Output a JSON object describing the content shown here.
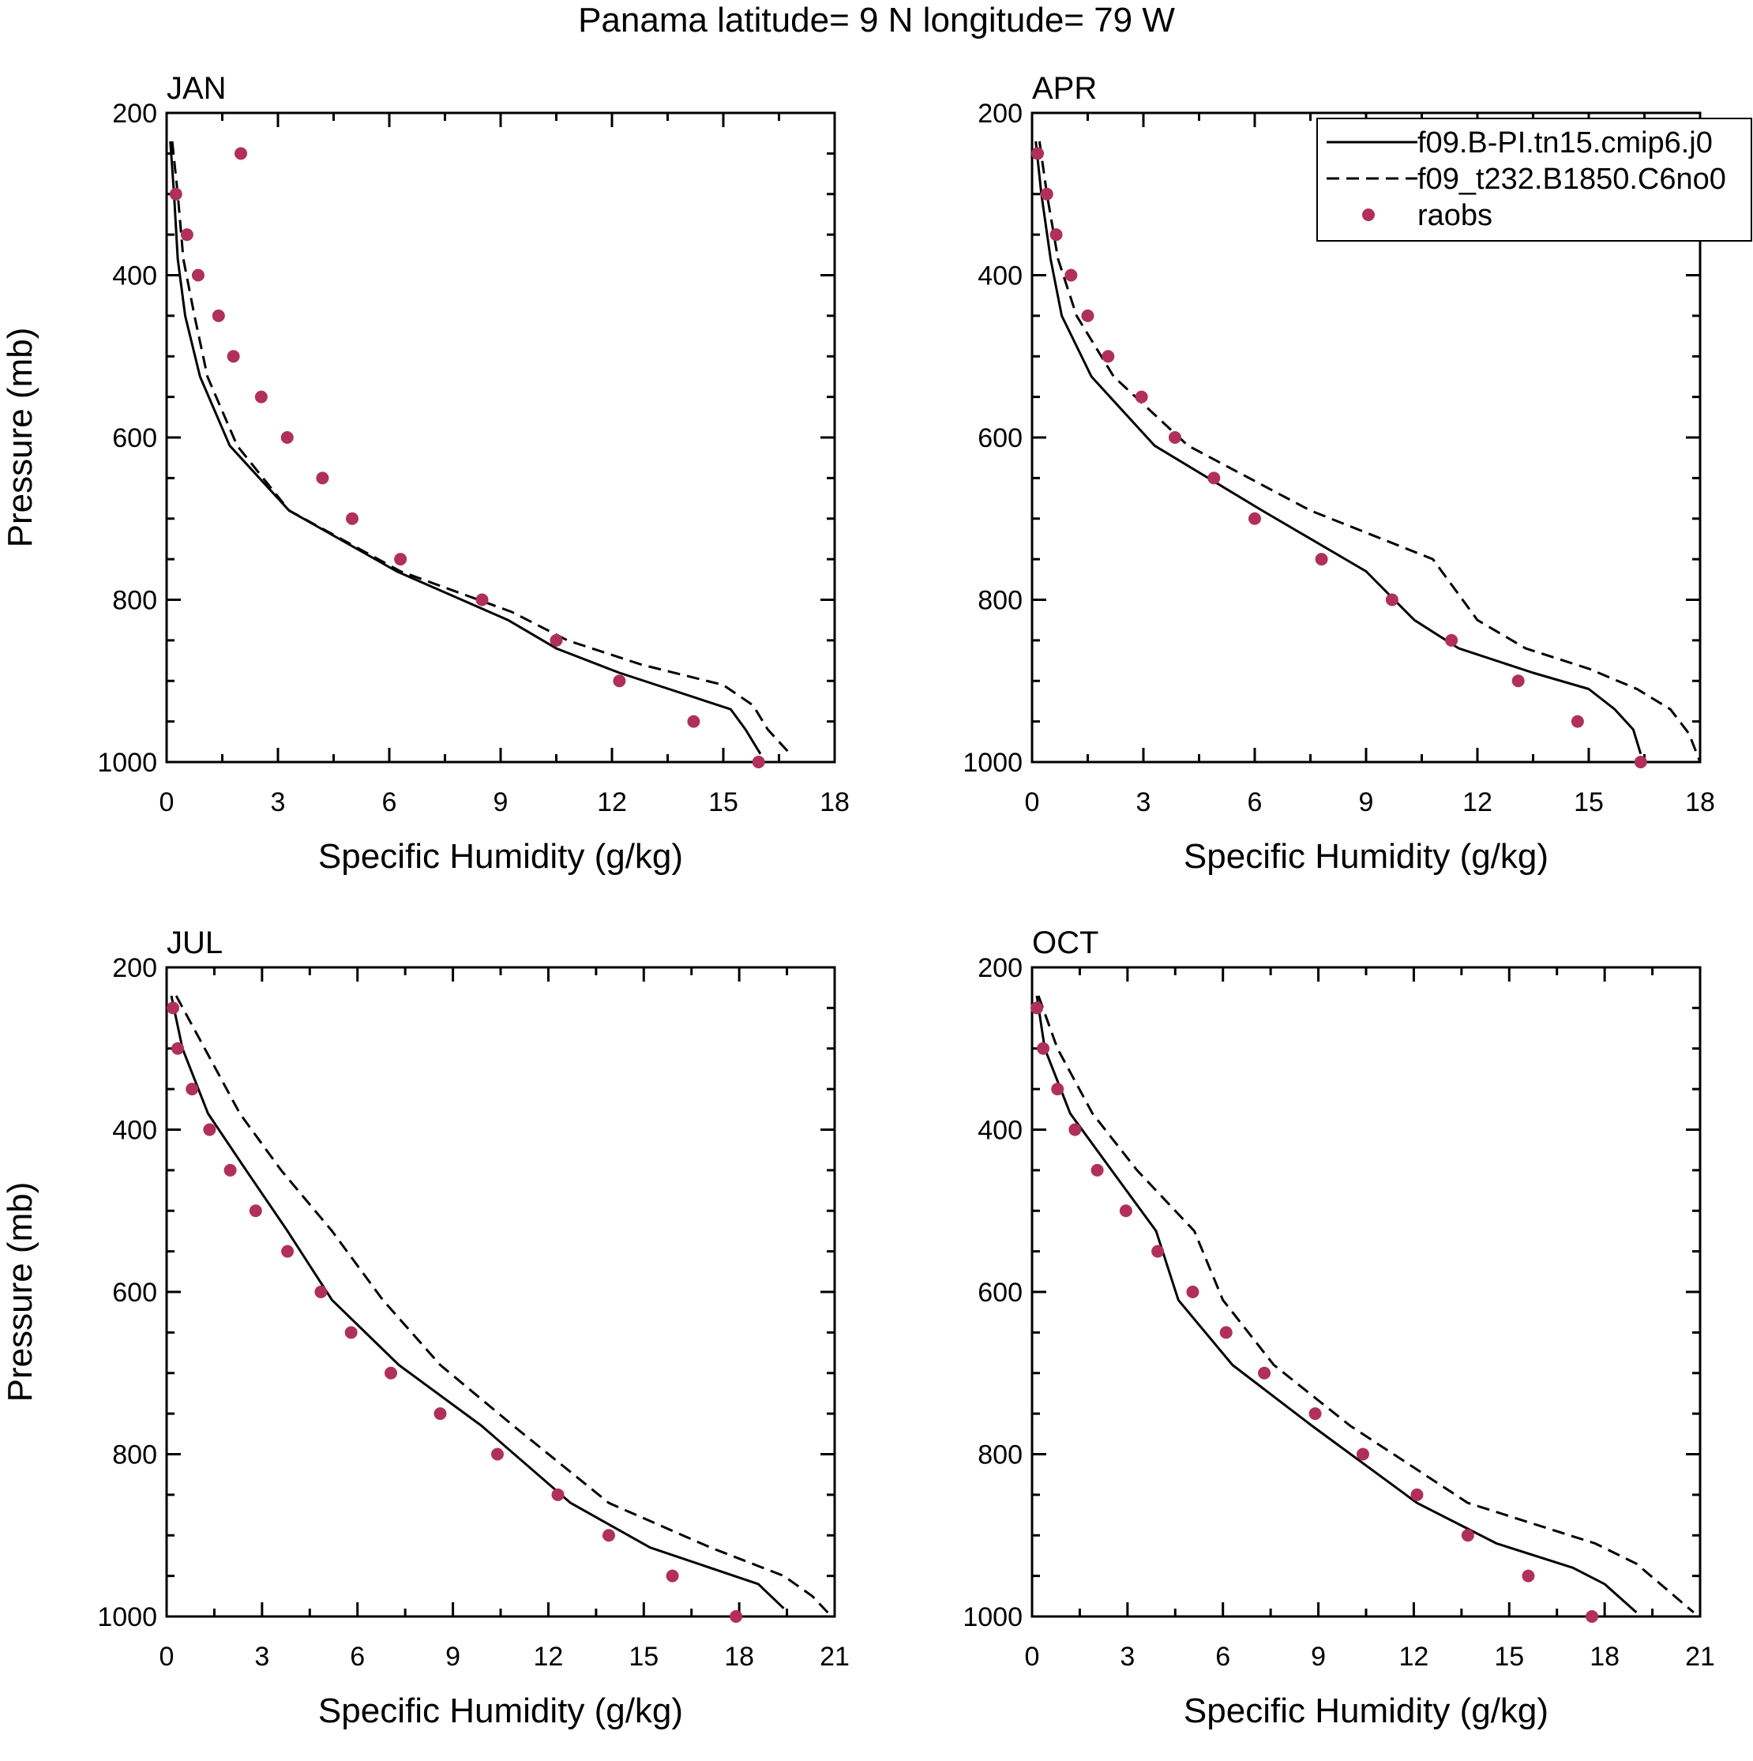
{
  "title": "Panama  latitude= 9 N longitude= 79 W",
  "colors": {
    "axis": "#000000",
    "model": "#000000",
    "obs": "#b0305a",
    "background": "#ffffff"
  },
  "legend": {
    "placement": "top-right of APR panel",
    "entries": [
      {
        "label": "f09.B-PI.tn15.cmip6.j0",
        "style": "solid-line"
      },
      {
        "label": "f09_t232.B1850.C6no0",
        "style": "dashed-line"
      },
      {
        "label": "raobs",
        "style": "dot-marker"
      }
    ]
  },
  "chart_data": [
    {
      "type": "line",
      "panel": "JAN",
      "title": "JAN",
      "xlabel": "Specific Humidity (g/kg)",
      "ylabel": "Pressure (mb)",
      "xlim": [
        0,
        18
      ],
      "ylim": [
        200,
        1000
      ],
      "y_inverted": true,
      "xticks": [
        0,
        3,
        6,
        9,
        12,
        15,
        18
      ],
      "yticks": [
        200,
        400,
        600,
        800,
        1000
      ],
      "series": [
        {
          "name": "f09.B-PI.tn15.cmip6.j0",
          "style": "solid",
          "points": [
            [
              0.1,
              235
            ],
            [
              0.2,
              300
            ],
            [
              0.3,
              380
            ],
            [
              0.5,
              450
            ],
            [
              0.9,
              525
            ],
            [
              1.7,
              610
            ],
            [
              3.3,
              690
            ],
            [
              6.2,
              765
            ],
            [
              9.2,
              825
            ],
            [
              10.5,
              860
            ],
            [
              12.2,
              890
            ],
            [
              15.2,
              935
            ],
            [
              15.6,
              960
            ],
            [
              16.0,
              990
            ]
          ]
        },
        {
          "name": "f09_t232.B1850.C6no0",
          "style": "dashed",
          "points": [
            [
              0.15,
              235
            ],
            [
              0.3,
              300
            ],
            [
              0.45,
              380
            ],
            [
              0.75,
              450
            ],
            [
              1.1,
              525
            ],
            [
              1.9,
              610
            ],
            [
              3.3,
              690
            ],
            [
              6.3,
              765
            ],
            [
              9.3,
              815
            ],
            [
              10.8,
              850
            ],
            [
              12.8,
              880
            ],
            [
              15.0,
              905
            ],
            [
              15.8,
              930
            ],
            [
              16.2,
              960
            ],
            [
              16.8,
              990
            ]
          ]
        },
        {
          "name": "raobs",
          "style": "markers",
          "points": [
            [
              2.0,
              250
            ],
            [
              0.25,
              300
            ],
            [
              0.55,
              350
            ],
            [
              0.85,
              400
            ],
            [
              1.4,
              450
            ],
            [
              1.8,
              500
            ],
            [
              2.55,
              550
            ],
            [
              3.25,
              600
            ],
            [
              4.2,
              650
            ],
            [
              5.0,
              700
            ],
            [
              6.3,
              750
            ],
            [
              8.5,
              800
            ],
            [
              10.5,
              850
            ],
            [
              12.2,
              900
            ],
            [
              14.2,
              950
            ],
            [
              15.95,
              1000
            ]
          ]
        }
      ]
    },
    {
      "type": "line",
      "panel": "APR",
      "title": "APR",
      "xlabel": "Specific Humidity (g/kg)",
      "ylabel": "",
      "xlim": [
        0,
        18
      ],
      "ylim": [
        200,
        1000
      ],
      "y_inverted": true,
      "xticks": [
        0,
        3,
        6,
        9,
        12,
        15,
        18
      ],
      "yticks": [
        200,
        400,
        600,
        800,
        1000
      ],
      "series": [
        {
          "name": "f09.B-PI.tn15.cmip6.j0",
          "style": "solid",
          "points": [
            [
              0.1,
              235
            ],
            [
              0.25,
              300
            ],
            [
              0.5,
              380
            ],
            [
              0.8,
              450
            ],
            [
              1.6,
              525
            ],
            [
              3.3,
              610
            ],
            [
              6.2,
              690
            ],
            [
              9.0,
              765
            ],
            [
              10.3,
              825
            ],
            [
              11.5,
              860
            ],
            [
              13.5,
              890
            ],
            [
              15.0,
              910
            ],
            [
              15.7,
              935
            ],
            [
              16.2,
              960
            ],
            [
              16.4,
              990
            ]
          ]
        },
        {
          "name": "f09_t232.B1850.C6no0",
          "style": "dashed",
          "points": [
            [
              0.2,
              235
            ],
            [
              0.4,
              300
            ],
            [
              0.7,
              380
            ],
            [
              1.2,
              450
            ],
            [
              2.2,
              525
            ],
            [
              4.2,
              610
            ],
            [
              7.5,
              690
            ],
            [
              10.8,
              750
            ],
            [
              12.0,
              825
            ],
            [
              13.3,
              860
            ],
            [
              15.0,
              885
            ],
            [
              16.3,
              910
            ],
            [
              17.2,
              935
            ],
            [
              17.7,
              965
            ],
            [
              18.0,
              1000
            ]
          ]
        },
        {
          "name": "raobs",
          "style": "markers",
          "points": [
            [
              0.15,
              250
            ],
            [
              0.4,
              300
            ],
            [
              0.65,
              350
            ],
            [
              1.05,
              400
            ],
            [
              1.5,
              450
            ],
            [
              2.05,
              500
            ],
            [
              2.95,
              550
            ],
            [
              3.85,
              600
            ],
            [
              4.9,
              650
            ],
            [
              6.0,
              700
            ],
            [
              7.8,
              750
            ],
            [
              9.7,
              800
            ],
            [
              11.3,
              850
            ],
            [
              13.1,
              900
            ],
            [
              14.7,
              950
            ],
            [
              16.4,
              1000
            ]
          ]
        }
      ]
    },
    {
      "type": "line",
      "panel": "JUL",
      "title": "JUL",
      "xlabel": "Specific Humidity (g/kg)",
      "ylabel": "Pressure (mb)",
      "xlim": [
        0,
        21
      ],
      "ylim": [
        200,
        1000
      ],
      "y_inverted": true,
      "xticks": [
        0,
        3,
        6,
        9,
        12,
        15,
        18,
        21
      ],
      "yticks": [
        200,
        400,
        600,
        800,
        1000
      ],
      "series": [
        {
          "name": "f09.B-PI.tn15.cmip6.j0",
          "style": "solid",
          "points": [
            [
              0.15,
              235
            ],
            [
              0.5,
              300
            ],
            [
              1.3,
              380
            ],
            [
              2.5,
              450
            ],
            [
              3.8,
              525
            ],
            [
              5.2,
              610
            ],
            [
              7.3,
              690
            ],
            [
              9.9,
              765
            ],
            [
              12.7,
              860
            ],
            [
              15.2,
              915
            ],
            [
              18.6,
              960
            ],
            [
              19.4,
              990
            ]
          ]
        },
        {
          "name": "f09_t232.B1850.C6no0",
          "style": "dashed",
          "points": [
            [
              0.3,
              235
            ],
            [
              1.2,
              300
            ],
            [
              2.3,
              380
            ],
            [
              3.6,
              450
            ],
            [
              5.2,
              525
            ],
            [
              6.8,
              610
            ],
            [
              8.6,
              690
            ],
            [
              10.9,
              765
            ],
            [
              13.9,
              860
            ],
            [
              17.1,
              915
            ],
            [
              19.4,
              950
            ],
            [
              20.3,
              975
            ],
            [
              20.9,
              1000
            ]
          ]
        },
        {
          "name": "raobs",
          "style": "markers",
          "points": [
            [
              0.2,
              250
            ],
            [
              0.35,
              300
            ],
            [
              0.8,
              350
            ],
            [
              1.35,
              400
            ],
            [
              2.0,
              450
            ],
            [
              2.8,
              500
            ],
            [
              3.8,
              550
            ],
            [
              4.85,
              600
            ],
            [
              5.8,
              650
            ],
            [
              7.05,
              700
            ],
            [
              8.6,
              750
            ],
            [
              10.4,
              800
            ],
            [
              12.3,
              850
            ],
            [
              13.9,
              900
            ],
            [
              15.9,
              950
            ],
            [
              17.9,
              1000
            ]
          ]
        }
      ]
    },
    {
      "type": "line",
      "panel": "OCT",
      "title": "OCT",
      "xlabel": "Specific Humidity (g/kg)",
      "ylabel": "",
      "xlim": [
        0,
        21
      ],
      "ylim": [
        200,
        1000
      ],
      "y_inverted": true,
      "xticks": [
        0,
        3,
        6,
        9,
        12,
        15,
        18,
        21
      ],
      "yticks": [
        200,
        400,
        600,
        800,
        1000
      ],
      "series": [
        {
          "name": "f09.B-PI.tn15.cmip6.j0",
          "style": "solid",
          "points": [
            [
              0.15,
              235
            ],
            [
              0.4,
              300
            ],
            [
              1.2,
              380
            ],
            [
              2.5,
              450
            ],
            [
              3.9,
              525
            ],
            [
              4.6,
              610
            ],
            [
              6.3,
              690
            ],
            [
              8.8,
              765
            ],
            [
              12.1,
              860
            ],
            [
              14.6,
              910
            ],
            [
              17.0,
              940
            ],
            [
              18.0,
              960
            ],
            [
              19.0,
              995
            ]
          ]
        },
        {
          "name": "f09_t232.B1850.C6no0",
          "style": "dashed",
          "points": [
            [
              0.2,
              235
            ],
            [
              0.8,
              300
            ],
            [
              1.9,
              380
            ],
            [
              3.3,
              450
            ],
            [
              5.1,
              525
            ],
            [
              6.0,
              610
            ],
            [
              7.6,
              690
            ],
            [
              10.0,
              765
            ],
            [
              13.7,
              860
            ],
            [
              17.7,
              910
            ],
            [
              19.0,
              935
            ],
            [
              19.9,
              965
            ],
            [
              20.8,
              995
            ]
          ]
        },
        {
          "name": "raobs",
          "style": "markers",
          "points": [
            [
              0.15,
              250
            ],
            [
              0.35,
              300
            ],
            [
              0.8,
              350
            ],
            [
              1.35,
              400
            ],
            [
              2.05,
              450
            ],
            [
              2.95,
              500
            ],
            [
              3.95,
              550
            ],
            [
              5.05,
              600
            ],
            [
              6.1,
              650
            ],
            [
              7.3,
              700
            ],
            [
              8.9,
              750
            ],
            [
              10.4,
              800
            ],
            [
              12.1,
              850
            ],
            [
              13.7,
              900
            ],
            [
              15.6,
              950
            ],
            [
              17.6,
              1000
            ]
          ]
        }
      ]
    }
  ]
}
